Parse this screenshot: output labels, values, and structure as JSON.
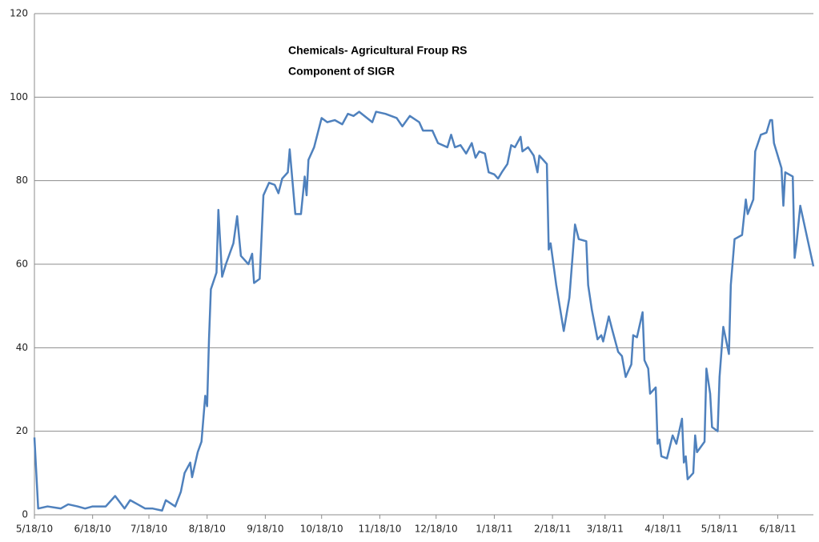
{
  "chart_data": {
    "type": "line",
    "title": "Chemicals- Agricultural Froup RS",
    "subtitle": "Component of SIGR",
    "color": "#4f81bd",
    "x": [
      "2010-05-18",
      "2010-05-20",
      "2010-05-25",
      "2010-06-01",
      "2010-06-05",
      "2010-06-10",
      "2010-06-14",
      "2010-06-18",
      "2010-06-25",
      "2010-06-30",
      "2010-07-05",
      "2010-07-08",
      "2010-07-12",
      "2010-07-16",
      "2010-07-20",
      "2010-07-25",
      "2010-07-27",
      "2010-08-01",
      "2010-08-04",
      "2010-08-06",
      "2010-08-09",
      "2010-08-10",
      "2010-08-13",
      "2010-08-15",
      "2010-08-17",
      "2010-08-18",
      "2010-08-19",
      "2010-08-20",
      "2010-08-23",
      "2010-08-24",
      "2010-08-26",
      "2010-08-28",
      "2010-09-01",
      "2010-09-03",
      "2010-09-05",
      "2010-09-09",
      "2010-09-11",
      "2010-09-12",
      "2010-09-15",
      "2010-09-17",
      "2010-09-20",
      "2010-09-23",
      "2010-09-25",
      "2010-09-27",
      "2010-09-30",
      "2010-10-01",
      "2010-10-04",
      "2010-10-07",
      "2010-10-09",
      "2010-10-10",
      "2010-10-11",
      "2010-10-14",
      "2010-10-18",
      "2010-10-21",
      "2010-10-25",
      "2010-10-29",
      "2010-11-01",
      "2010-11-04",
      "2010-11-07",
      "2010-11-14",
      "2010-11-16",
      "2010-11-21",
      "2010-11-27",
      "2010-11-30",
      "2010-12-04",
      "2010-12-09",
      "2010-12-11",
      "2010-12-16",
      "2010-12-19",
      "2010-12-24",
      "2010-12-26",
      "2010-12-28",
      "2010-12-31",
      "2011-01-03",
      "2011-01-06",
      "2011-01-08",
      "2011-01-10",
      "2011-01-13",
      "2011-01-15",
      "2011-01-18",
      "2011-01-20",
      "2011-01-22",
      "2011-01-25",
      "2011-01-27",
      "2011-01-29",
      "2011-02-01",
      "2011-02-02",
      "2011-02-05",
      "2011-02-08",
      "2011-02-10",
      "2011-02-11",
      "2011-02-15",
      "2011-02-16",
      "2011-02-17",
      "2011-02-20",
      "2011-02-24",
      "2011-02-27",
      "2011-03-02",
      "2011-03-04",
      "2011-03-08",
      "2011-03-09",
      "2011-03-11",
      "2011-03-14",
      "2011-03-16",
      "2011-03-17",
      "2011-03-20",
      "2011-03-22",
      "2011-03-25",
      "2011-03-27",
      "2011-03-29",
      "2011-04-01",
      "2011-04-02",
      "2011-04-04",
      "2011-04-07",
      "2011-04-08",
      "2011-04-10",
      "2011-04-11",
      "2011-04-14",
      "2011-04-15",
      "2011-04-16",
      "2011-04-17",
      "2011-04-20",
      "2011-04-23",
      "2011-04-25",
      "2011-04-28",
      "2011-04-29",
      "2011-04-30",
      "2011-05-01",
      "2011-05-04",
      "2011-05-05",
      "2011-05-06",
      "2011-05-10",
      "2011-05-11",
      "2011-05-13",
      "2011-05-14",
      "2011-05-17",
      "2011-05-18",
      "2011-05-20",
      "2011-05-23",
      "2011-05-24",
      "2011-05-26",
      "2011-05-30",
      "2011-06-01",
      "2011-06-02",
      "2011-06-05",
      "2011-06-06",
      "2011-06-09",
      "2011-06-12",
      "2011-06-14",
      "2011-06-15",
      "2011-06-16",
      "2011-06-20",
      "2011-06-21",
      "2011-06-22",
      "2011-06-26",
      "2011-06-27",
      "2011-06-28",
      "2011-06-30",
      "2011-07-07"
    ],
    "values": [
      18.5,
      1.5,
      2,
      1.5,
      2.5,
      2,
      1.5,
      2,
      2,
      4.5,
      1.5,
      3.5,
      2.5,
      1.5,
      1.5,
      1,
      3.5,
      2,
      5.5,
      10,
      12.5,
      9,
      15,
      17.5,
      28.5,
      26,
      42,
      54,
      58,
      73,
      57,
      60,
      65,
      71.5,
      62,
      60,
      62.5,
      55.5,
      56.5,
      76.5,
      79.5,
      79,
      77,
      80.5,
      82,
      87.5,
      72,
      72,
      81,
      76.5,
      85,
      88,
      95,
      94,
      94.5,
      93.5,
      96,
      95.5,
      96.5,
      94,
      96.5,
      96,
      95,
      93,
      95.5,
      94,
      92,
      92,
      89,
      88,
      91,
      88,
      88.5,
      86.5,
      89,
      85.5,
      87,
      86.5,
      82,
      81.5,
      80.5,
      82,
      84,
      88.5,
      88,
      90.5,
      87,
      88,
      86,
      82,
      86,
      84,
      63.5,
      65,
      55,
      44,
      52,
      69.5,
      66,
      65.5,
      55,
      49,
      42,
      43,
      41.5,
      47.5,
      44,
      39,
      38,
      33,
      36,
      43,
      42.5,
      48.5,
      37,
      35,
      29,
      30.5,
      17,
      18,
      14,
      13.5,
      19,
      17,
      23,
      12.5,
      14,
      8.5,
      10,
      19,
      15,
      17.5,
      35,
      29,
      21,
      20,
      33,
      45,
      38.5,
      55,
      66,
      67,
      75.5,
      72,
      75.5,
      87,
      91,
      91.5,
      94.5,
      94.5,
      89,
      83,
      74,
      82,
      81,
      61.5,
      65,
      74,
      59.5
    ],
    "xlim": [
      "2010-05-18",
      "2011-07-07"
    ],
    "xticks": [
      {
        "value": "2010-05-18",
        "label": "5/18/10"
      },
      {
        "value": "2010-06-18",
        "label": "6/18/10"
      },
      {
        "value": "2010-07-18",
        "label": "7/18/10"
      },
      {
        "value": "2010-08-18",
        "label": "8/18/10"
      },
      {
        "value": "2010-09-18",
        "label": "9/18/10"
      },
      {
        "value": "2010-10-18",
        "label": "10/18/10"
      },
      {
        "value": "2010-11-18",
        "label": "11/18/10"
      },
      {
        "value": "2010-12-18",
        "label": "12/18/10"
      },
      {
        "value": "2011-01-18",
        "label": "1/18/11"
      },
      {
        "value": "2011-02-18",
        "label": "2/18/11"
      },
      {
        "value": "2011-03-18",
        "label": "3/18/11"
      },
      {
        "value": "2011-04-18",
        "label": "4/18/11"
      },
      {
        "value": "2011-05-18",
        "label": "5/18/11"
      },
      {
        "value": "2011-06-18",
        "label": "6/18/11"
      }
    ],
    "ylim": [
      0,
      120
    ],
    "yticks": [
      0,
      20,
      40,
      60,
      80,
      100,
      120
    ],
    "grid": true
  }
}
